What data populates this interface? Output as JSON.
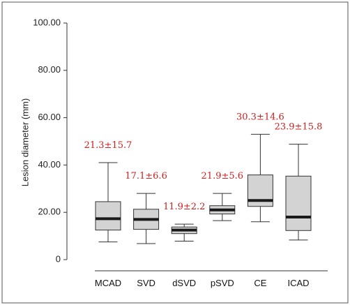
{
  "chart_data": {
    "type": "box",
    "title": "",
    "xlabel": "",
    "ylabel": "Lesion diameter (mm)",
    "ylim": [
      0,
      100
    ],
    "yticks": [
      "0",
      "20.00",
      "40.00",
      "60.00",
      "80.00",
      "100.00"
    ],
    "ytick_values": [
      0,
      20,
      40,
      60,
      80,
      100
    ],
    "grid": false,
    "box_fill": "#d3d3d3",
    "median_color": "#1a1a1a",
    "annotation_color": "#cc1f1f",
    "categories": [
      "MCAD",
      "SVD",
      "dSVD",
      "pSVD",
      "CE",
      "ICAD"
    ],
    "boxes": [
      {
        "category": "MCAD",
        "whisker_low": 7.5,
        "q1": 12.5,
        "median": 17.3,
        "q3": 24.5,
        "whisker_high": 41.0,
        "annotation": "21.3±15.7"
      },
      {
        "category": "SVD",
        "whisker_low": 6.8,
        "q1": 12.8,
        "median": 17.0,
        "q3": 21.3,
        "whisker_high": 28.0,
        "annotation": "17.1±6.6"
      },
      {
        "category": "dSVD",
        "whisker_low": 7.8,
        "q1": 11.0,
        "median": 12.5,
        "q3": 13.8,
        "whisker_high": 15.0,
        "annotation": "11.9±2.2"
      },
      {
        "category": "pSVD",
        "whisker_low": 16.5,
        "q1": 19.3,
        "median": 21.0,
        "q3": 22.8,
        "whisker_high": 28.0,
        "annotation": "21.9±5.6"
      },
      {
        "category": "CE",
        "whisker_low": 16.0,
        "q1": 22.5,
        "median": 25.0,
        "q3": 35.8,
        "whisker_high": 53.0,
        "annotation": "30.3±14.6"
      },
      {
        "category": "ICAD",
        "whisker_low": 8.3,
        "q1": 12.3,
        "median": 18.0,
        "q3": 35.3,
        "whisker_high": 48.8,
        "annotation": "23.9±15.8"
      }
    ]
  }
}
